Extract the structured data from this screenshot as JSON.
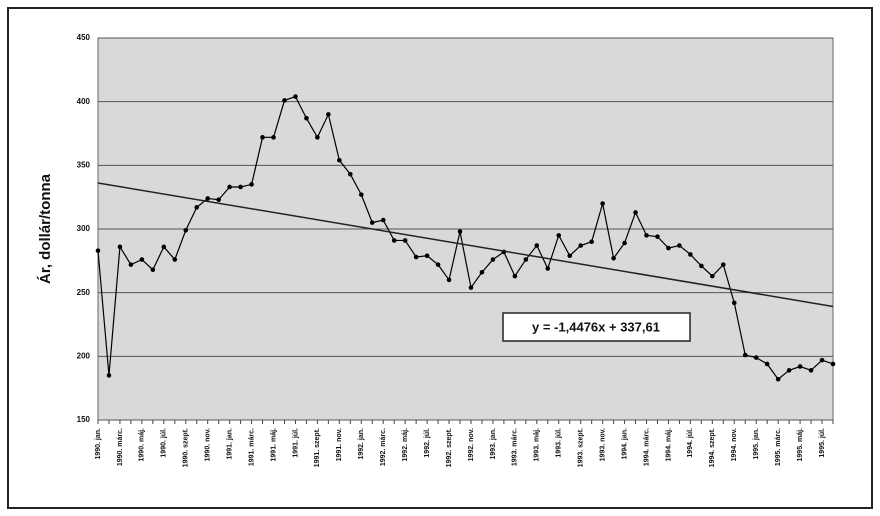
{
  "chart_data": {
    "type": "line",
    "y_label": "Ár, dollár/tonna",
    "categories": [
      "1990. jan.",
      null,
      "1990. márc.",
      null,
      "1990. máj.",
      null,
      "1990. júl.",
      null,
      "1990. szept.",
      null,
      "1990. nov.",
      null,
      "1991. jan.",
      null,
      "1991. márc.",
      null,
      "1991. máj.",
      null,
      "1991. júl.",
      null,
      "1991. szept.",
      null,
      "1991. nov.",
      null,
      "1992. jan.",
      null,
      "1992. márc.",
      null,
      "1992. máj.",
      null,
      "1992. júl.",
      null,
      "1992. szept.",
      null,
      "1992. nov.",
      null,
      "1993. jan.",
      null,
      "1993. márc.",
      null,
      "1993. máj.",
      null,
      "1993. júl.",
      null,
      "1993. szept.",
      null,
      "1993. nov.",
      null,
      "1994. jan.",
      null,
      "1994. márc.",
      null,
      "1994. máj.",
      null,
      "1994. júl.",
      null,
      "1994. szept.",
      null,
      "1994. nov.",
      null,
      "1995. jan.",
      null,
      "1995. márc.",
      null,
      "1995. máj.",
      null,
      "1995. júl.",
      null
    ],
    "series": [
      {
        "name": "Ár",
        "color": "#000000",
        "values": [
          283,
          185,
          286,
          272,
          276,
          268,
          286,
          276,
          299,
          317,
          324,
          323,
          333,
          333,
          335,
          372,
          372,
          401,
          404,
          387,
          372,
          390,
          354,
          343,
          327,
          305,
          307,
          291,
          291,
          278,
          279,
          272,
          260,
          298,
          254,
          266,
          276,
          282,
          263,
          276,
          287,
          269,
          295,
          279,
          287,
          290,
          320,
          277,
          289,
          313,
          295,
          294,
          285,
          287,
          280,
          271,
          263,
          272,
          242,
          201,
          199,
          194,
          182,
          189,
          192,
          189,
          197,
          194
        ]
      }
    ],
    "trendline": {
      "slope": -1.4476,
      "intercept": 337.61,
      "label": "y = -1,4476x + 337,61"
    },
    "ylim": [
      150,
      450
    ],
    "yticks": [
      150,
      200,
      250,
      300,
      350,
      400,
      450
    ],
    "grid": true
  }
}
